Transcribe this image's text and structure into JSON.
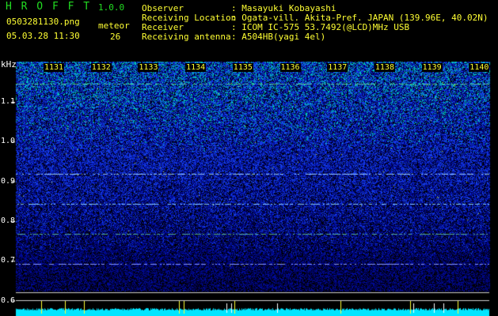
{
  "app": {
    "name": "H R O F F T",
    "version": "1.0.0"
  },
  "file": {
    "name": "0503281130.png",
    "datetime": "05.03.28 11:30"
  },
  "meteor": {
    "label": "meteor",
    "count": "26"
  },
  "info": [
    {
      "label": "Observer",
      "value": ": Masayuki Kobayashi"
    },
    {
      "label": "Receiving Location",
      "value": ": Ogata-vill. Akita-Pref. JAPAN (139.96E, 40.02N)"
    },
    {
      "label": "Receiver",
      "value": ": ICOM IC-575 53.7492(@LCD)MHz USB"
    },
    {
      "label": "Receiving antenna",
      "value": ": A504HB(yagi 4el)"
    }
  ],
  "axis": {
    "unit": "kHz",
    "y_ticks": [
      "1.1",
      "1.0",
      "0.9",
      "0.8",
      "0.7",
      "0.6"
    ],
    "time_ticks": [
      "1131",
      "1132",
      "1133",
      "1134",
      "1135",
      "1136",
      "1137",
      "1138",
      "1139",
      "1140"
    ]
  },
  "colors": {
    "title": "#22dd22",
    "text": "#ffff33",
    "background": "#000000",
    "signal_bar": "#00e5ff"
  }
}
